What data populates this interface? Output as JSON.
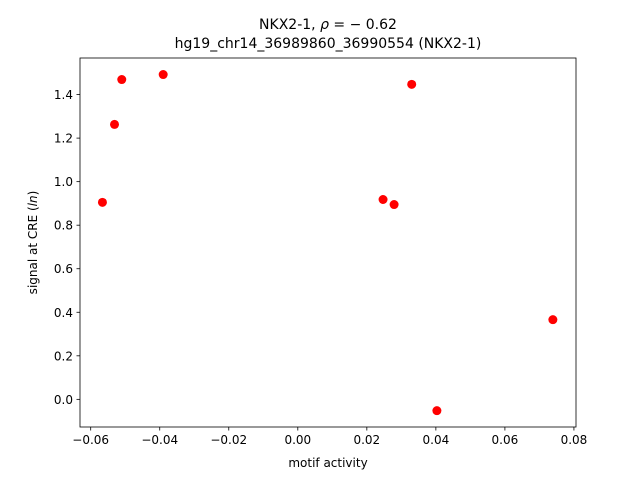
{
  "chart_data": {
    "type": "scatter",
    "title_line1_prefix": "NKX2-1, ",
    "title_line1_rho": "ρ",
    "title_line1_suffix": " = − 0.62",
    "title_line2": "hg19_chr14_36989860_36990554 (NKX2-1)",
    "xlabel": "motif activity",
    "ylabel_prefix": "signal at CRE (",
    "ylabel_italic": "ln",
    "ylabel_suffix": ")",
    "xlim": [
      -0.0631,
      0.0806
    ],
    "ylim": [
      -0.127,
      1.568
    ],
    "x_ticks": [
      -0.06,
      -0.04,
      -0.02,
      0.0,
      0.02,
      0.04,
      0.06,
      0.08
    ],
    "x_tick_labels": [
      "−0.06",
      "−0.04",
      "−0.02",
      "0.00",
      "0.02",
      "0.04",
      "0.06",
      "0.08"
    ],
    "y_ticks": [
      0.0,
      0.2,
      0.4,
      0.6,
      0.8,
      1.0,
      1.2,
      1.4
    ],
    "y_tick_labels": [
      "0.0",
      "0.2",
      "0.4",
      "0.6",
      "0.8",
      "1.0",
      "1.2",
      "1.4"
    ],
    "point_color": "#ff0000",
    "grid": false,
    "legend": "none",
    "points": [
      {
        "x": -0.0566,
        "y": 0.905
      },
      {
        "x": -0.0531,
        "y": 1.263
      },
      {
        "x": -0.051,
        "y": 1.469
      },
      {
        "x": -0.039,
        "y": 1.492
      },
      {
        "x": 0.0247,
        "y": 0.918
      },
      {
        "x": 0.0279,
        "y": 0.895
      },
      {
        "x": 0.033,
        "y": 1.447
      },
      {
        "x": 0.0403,
        "y": -0.052
      },
      {
        "x": 0.0739,
        "y": 0.366
      }
    ]
  }
}
